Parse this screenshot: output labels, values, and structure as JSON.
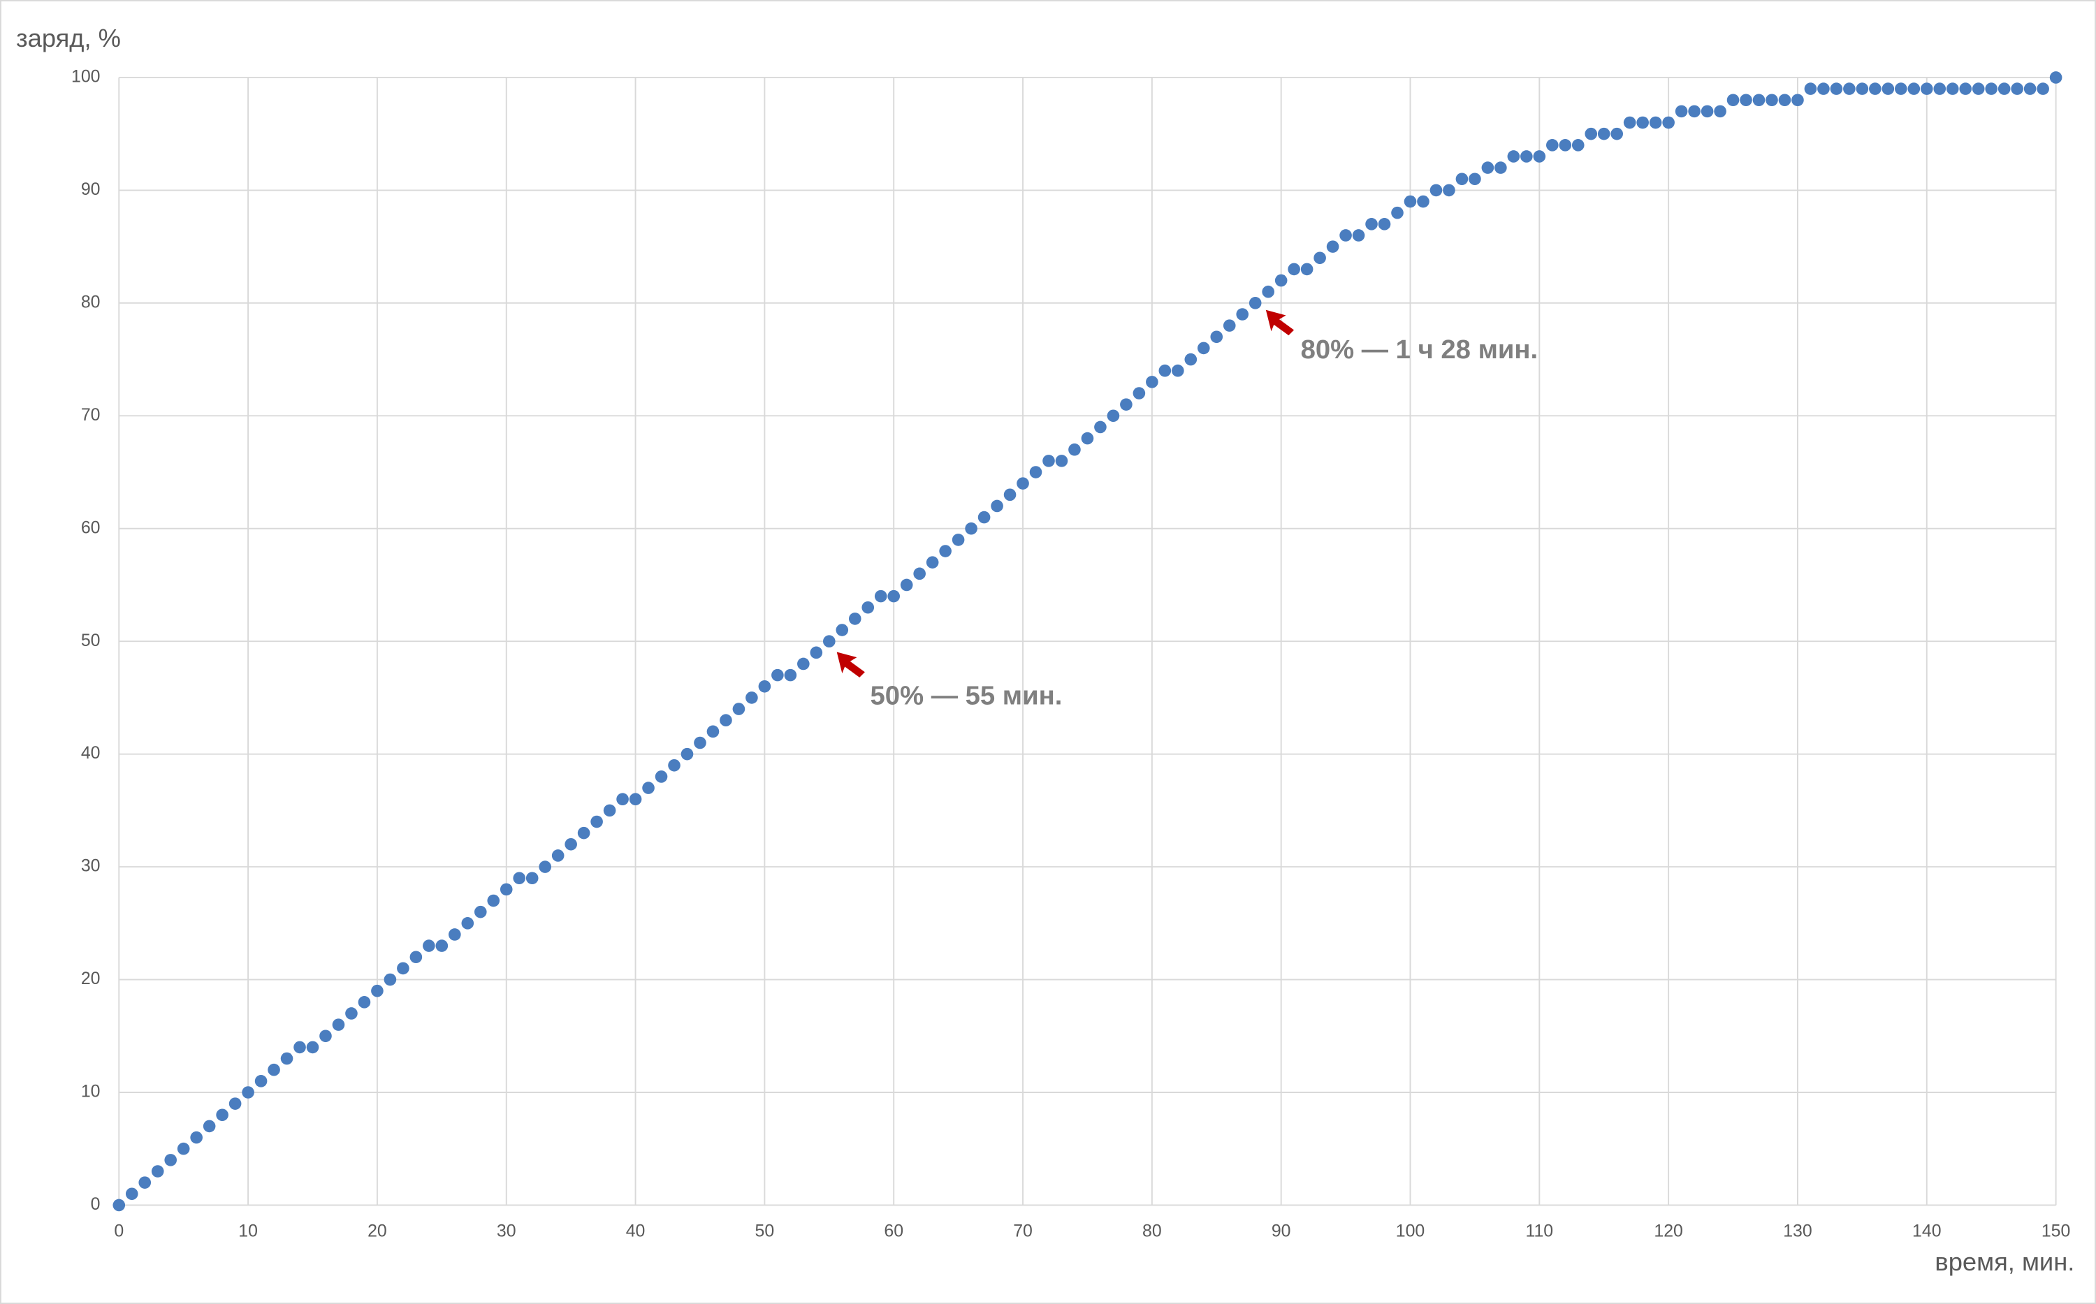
{
  "chart_data": {
    "type": "scatter",
    "y_label": "заряд, %",
    "x_label": "время, мин.",
    "annotations": [
      "80% — 1 ч 28 мин.",
      "50% — 55 мин."
    ],
    "color": "#4a7dbf",
    "grid": true,
    "xlim": [
      0,
      150
    ],
    "xticks": [
      0,
      10,
      20,
      30,
      40,
      50,
      60,
      70,
      80,
      90,
      100,
      110,
      120,
      130,
      140,
      150
    ],
    "ylim": [
      0,
      100
    ],
    "yticks": [
      0,
      10,
      20,
      30,
      40,
      50,
      60,
      70,
      80,
      90,
      100
    ],
    "x": [
      0,
      1,
      2,
      3,
      4,
      5,
      6,
      7,
      8,
      9,
      10,
      11,
      12,
      13,
      14,
      15,
      16,
      17,
      18,
      19,
      20,
      21,
      22,
      23,
      24,
      25,
      26,
      27,
      28,
      29,
      30,
      31,
      32,
      33,
      34,
      35,
      36,
      37,
      38,
      39,
      40,
      41,
      42,
      43,
      44,
      45,
      46,
      47,
      48,
      49,
      50,
      51,
      52,
      53,
      54,
      55,
      56,
      57,
      58,
      59,
      60,
      61,
      62,
      63,
      64,
      65,
      66,
      67,
      68,
      69,
      70,
      71,
      72,
      73,
      74,
      75,
      76,
      77,
      78,
      79,
      80,
      81,
      82,
      83,
      84,
      85,
      86,
      87,
      88,
      89,
      90,
      91,
      92,
      93,
      94,
      95,
      96,
      97,
      98,
      99,
      100,
      101,
      102,
      103,
      104,
      105,
      106,
      107,
      108,
      109,
      110,
      111,
      112,
      113,
      114,
      115,
      116,
      117,
      118,
      119,
      120,
      121,
      122,
      123,
      124,
      125,
      126,
      127,
      128,
      129,
      130,
      131,
      132,
      133,
      134,
      135,
      136,
      137,
      138,
      139,
      140,
      141,
      142,
      143,
      144,
      145,
      146,
      147,
      148,
      149,
      150
    ],
    "values": [
      0,
      1,
      2,
      3,
      4,
      5,
      6,
      7,
      8,
      9,
      10,
      11,
      12,
      13,
      14,
      14,
      15,
      16,
      17,
      18,
      19,
      20,
      21,
      22,
      23,
      23,
      24,
      25,
      26,
      27,
      28,
      29,
      29,
      30,
      31,
      32,
      33,
      34,
      35,
      36,
      36,
      37,
      38,
      39,
      40,
      41,
      42,
      43,
      44,
      45,
      46,
      47,
      47,
      48,
      49,
      50,
      51,
      52,
      53,
      54,
      54,
      55,
      56,
      57,
      58,
      59,
      60,
      61,
      62,
      63,
      64,
      65,
      66,
      66,
      67,
      68,
      69,
      70,
      71,
      72,
      73,
      74,
      74,
      75,
      76,
      77,
      78,
      79,
      80,
      81,
      82,
      83,
      83,
      84,
      85,
      86,
      86,
      87,
      87,
      88,
      89,
      89,
      90,
      90,
      91,
      91,
      92,
      92,
      93,
      93,
      93,
      94,
      94,
      94,
      95,
      95,
      95,
      96,
      96,
      96,
      96,
      97,
      97,
      97,
      97,
      98,
      98,
      98,
      98,
      98,
      98,
      99,
      99,
      99,
      99,
      99,
      99,
      99,
      99,
      99,
      99,
      99,
      99,
      99,
      99,
      99,
      99,
      99,
      99,
      99,
      100
    ]
  }
}
